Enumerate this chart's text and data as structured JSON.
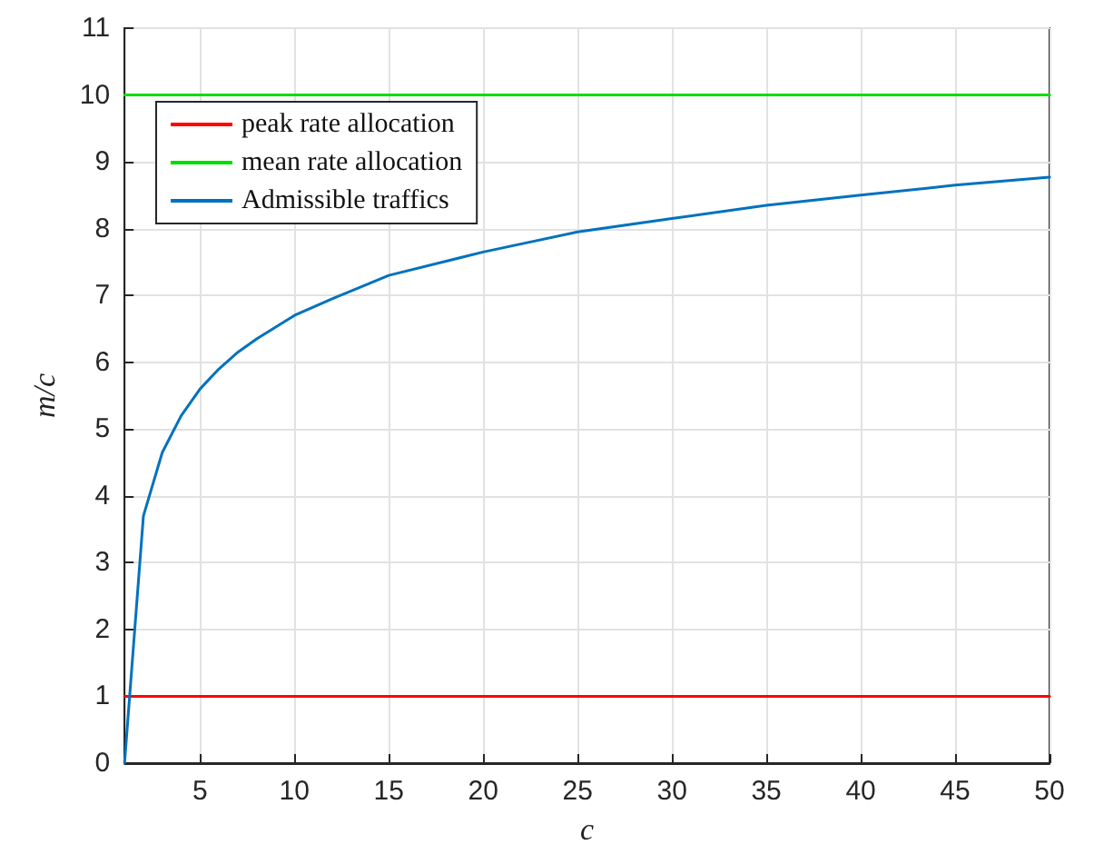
{
  "chart_data": {
    "type": "line",
    "xlabel": "c",
    "ylabel": "m/c",
    "xlim": [
      1,
      50
    ],
    "xticks": [
      5,
      10,
      15,
      20,
      25,
      30,
      35,
      40,
      45,
      50
    ],
    "ylim": [
      0,
      11
    ],
    "yticks": [
      0,
      1,
      2,
      3,
      4,
      5,
      6,
      7,
      8,
      9,
      10,
      11
    ],
    "grid": true,
    "legend": "top left",
    "line_style": "solid",
    "marker": "none",
    "series": [
      {
        "name": "peak rate allocation",
        "color": "#ff0000",
        "x": [
          1,
          50
        ],
        "values": [
          1,
          1
        ]
      },
      {
        "name": "mean rate allocation",
        "color": "#00dd00",
        "x": [
          1,
          50
        ],
        "values": [
          10,
          10
        ]
      },
      {
        "name": "Admissible traffics",
        "color": "#0072bd",
        "x": [
          1,
          2,
          3,
          4,
          5,
          6,
          7,
          8,
          10,
          12,
          15,
          20,
          25,
          30,
          35,
          40,
          45,
          50
        ],
        "values": [
          0,
          3.7,
          4.65,
          5.2,
          5.6,
          5.9,
          6.15,
          6.35,
          6.7,
          6.95,
          7.3,
          7.65,
          7.95,
          8.15,
          8.35,
          8.5,
          8.65,
          8.77
        ]
      }
    ]
  }
}
